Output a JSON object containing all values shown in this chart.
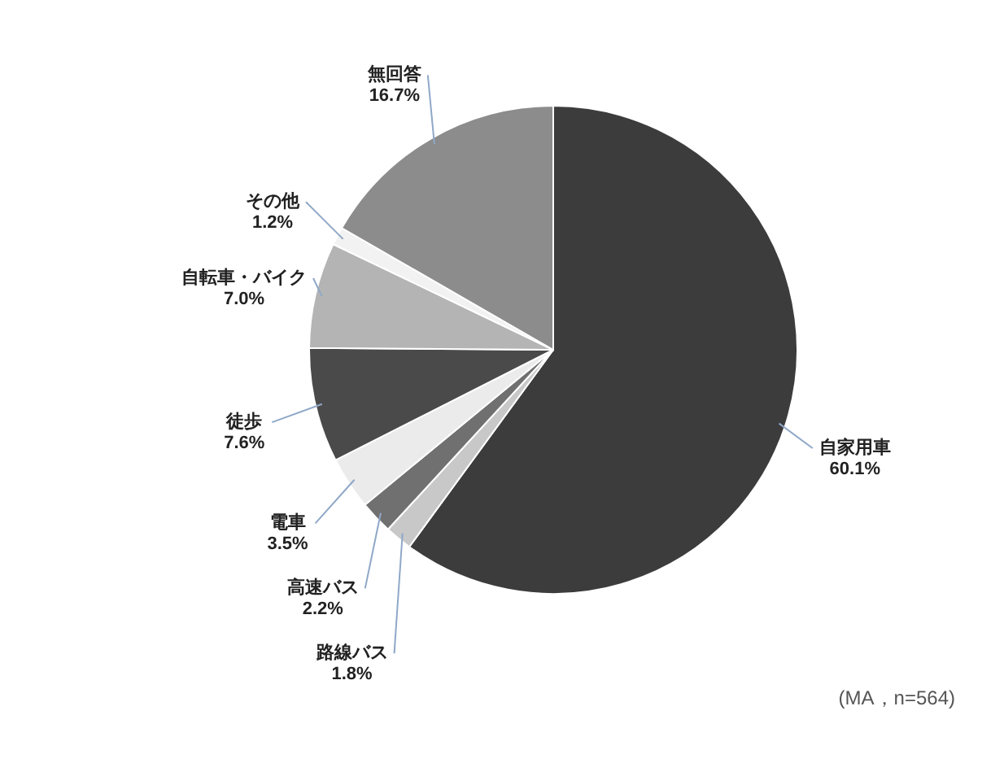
{
  "chart_data": {
    "type": "pie",
    "categories": [
      "自家用車",
      "路線バス",
      "高速バス",
      "電車",
      "徒歩",
      "自転車・バイク",
      "その他",
      "無回答"
    ],
    "values": [
      60.1,
      1.8,
      2.2,
      3.5,
      7.6,
      7.0,
      1.2,
      16.7
    ],
    "value_labels": [
      "60.1%",
      "1.8%",
      "2.2%",
      "3.5%",
      "7.6%",
      "7.0%",
      "1.2%",
      "16.7%"
    ],
    "colors": [
      "#3c3c3c",
      "#c8c8c8",
      "#707070",
      "#ebebeb",
      "#4a4a4a",
      "#b4b4b4",
      "#f2f2f2",
      "#8c8c8c"
    ],
    "annotations": [
      "(MA，n=564)"
    ]
  }
}
